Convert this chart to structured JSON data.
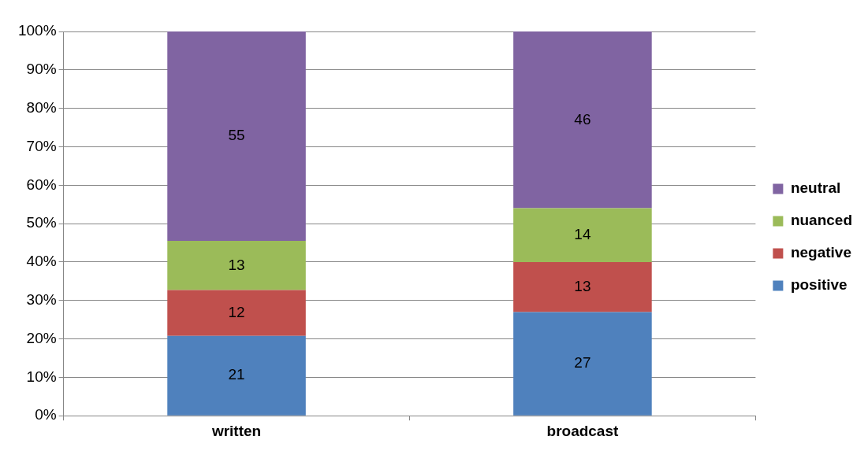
{
  "chart_data": {
    "type": "bar",
    "stacked": true,
    "categories": [
      "written",
      "broadcast"
    ],
    "series": [
      {
        "name": "positive",
        "color": "#4f81bd",
        "values": [
          20.8,
          27
        ],
        "value_labels": [
          "21",
          "27"
        ]
      },
      {
        "name": "negative",
        "color": "#c0504d",
        "values": [
          11.9,
          13
        ],
        "value_labels": [
          "12",
          "13"
        ]
      },
      {
        "name": "nuanced",
        "color": "#9bbb59",
        "values": [
          12.8,
          14
        ],
        "value_labels": [
          "13",
          "14"
        ]
      },
      {
        "name": "neutral",
        "color": "#8064a2",
        "values": [
          54.5,
          46
        ],
        "value_labels": [
          "55",
          "46"
        ]
      }
    ],
    "ylim": [
      0,
      100
    ],
    "yticks": [
      {
        "value": 0,
        "label": "0%"
      },
      {
        "value": 10,
        "label": "10%"
      },
      {
        "value": 20,
        "label": "20%"
      },
      {
        "value": 30,
        "label": "30%"
      },
      {
        "value": 40,
        "label": "40%"
      },
      {
        "value": 50,
        "label": "50%"
      },
      {
        "value": 60,
        "label": "60%"
      },
      {
        "value": 70,
        "label": "70%"
      },
      {
        "value": 80,
        "label": "80%"
      },
      {
        "value": 90,
        "label": "90%"
      },
      {
        "value": 100,
        "label": "100%"
      }
    ],
    "grid": "y",
    "legend": "right"
  }
}
